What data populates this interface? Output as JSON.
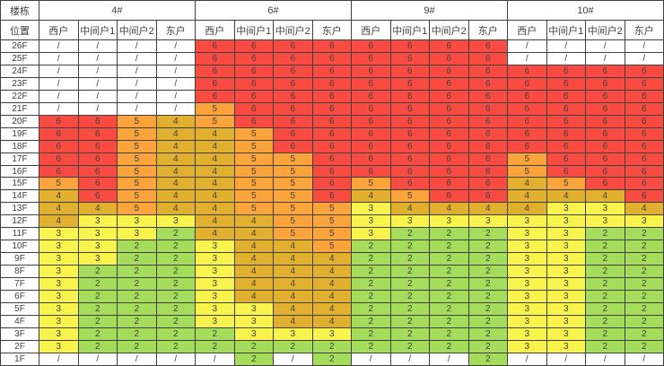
{
  "table": {
    "corner_row1": "楼栋",
    "corner_row2": "位置"
  },
  "chart_data": {
    "type": "heatmap",
    "title": "",
    "row_axis_label_row1": "楼栋",
    "row_axis_label_row2": "位置",
    "row_labels": [
      "26F",
      "25F",
      "24F",
      "23F",
      "22F",
      "21F",
      "20F",
      "19F",
      "18F",
      "17F",
      "16F",
      "15F",
      "14F",
      "13F",
      "12F",
      "11F",
      "10F",
      "9F",
      "8F",
      "7F",
      "6F",
      "5F",
      "4F",
      "3F",
      "2F",
      "1F"
    ],
    "column_groups": [
      "4#",
      "6#",
      "9#",
      "10#"
    ],
    "sub_columns": [
      "西户",
      "中间户1",
      "中间户2",
      "东户"
    ],
    "empty_marker": "/",
    "legend": "none",
    "grid": true,
    "values": {
      "4#": [
        [
          "/",
          "/",
          "/",
          "/"
        ],
        [
          "/",
          "/",
          "/",
          "/"
        ],
        [
          "/",
          "/",
          "/",
          "/"
        ],
        [
          "/",
          "/",
          "/",
          "/"
        ],
        [
          "/",
          "/",
          "/",
          "/"
        ],
        [
          "/",
          "/",
          "/",
          "/"
        ],
        [
          "6",
          "6",
          "5",
          "4"
        ],
        [
          "6",
          "6",
          "5",
          "4"
        ],
        [
          "6",
          "6",
          "5",
          "4"
        ],
        [
          "6",
          "6",
          "5",
          "4"
        ],
        [
          "6",
          "6",
          "5",
          "4"
        ],
        [
          "5",
          "6",
          "5",
          "4"
        ],
        [
          "4",
          "6",
          "5",
          "4"
        ],
        [
          "4",
          "4",
          "5",
          "4"
        ],
        [
          "4",
          "3",
          "3",
          "3"
        ],
        [
          "3",
          "3",
          "3",
          "2"
        ],
        [
          "3",
          "3",
          "2",
          "2"
        ],
        [
          "3",
          "3",
          "2",
          "2"
        ],
        [
          "3",
          "2",
          "2",
          "2"
        ],
        [
          "3",
          "2",
          "2",
          "2"
        ],
        [
          "3",
          "2",
          "2",
          "2"
        ],
        [
          "3",
          "2",
          "2",
          "2"
        ],
        [
          "3",
          "2",
          "2",
          "2"
        ],
        [
          "3",
          "2",
          "2",
          "2"
        ],
        [
          "3",
          "2",
          "2",
          "2"
        ],
        [
          "/",
          "/",
          "/",
          "/"
        ]
      ],
      "6#": [
        [
          "6",
          "6",
          "6",
          "6"
        ],
        [
          "6",
          "6",
          "6",
          "6"
        ],
        [
          "6",
          "6",
          "6",
          "6"
        ],
        [
          "6",
          "6",
          "6",
          "6"
        ],
        [
          "6",
          "6",
          "6",
          "6"
        ],
        [
          "5",
          "6",
          "6",
          "6"
        ],
        [
          "5",
          "6",
          "6",
          "6"
        ],
        [
          "4",
          "5",
          "6",
          "6"
        ],
        [
          "4",
          "5",
          "6",
          "6"
        ],
        [
          "4",
          "5",
          "5",
          "6"
        ],
        [
          "4",
          "5",
          "5",
          "6"
        ],
        [
          "4",
          "5",
          "5",
          "6"
        ],
        [
          "4",
          "5",
          "5",
          "6"
        ],
        [
          "4",
          "5",
          "5",
          "5"
        ],
        [
          "4",
          "4",
          "5",
          "5"
        ],
        [
          "4",
          "4",
          "5",
          "5"
        ],
        [
          "3",
          "4",
          "4",
          "5"
        ],
        [
          "3",
          "4",
          "4",
          "4"
        ],
        [
          "3",
          "4",
          "4",
          "4"
        ],
        [
          "3",
          "4",
          "4",
          "4"
        ],
        [
          "3",
          "4",
          "4",
          "4"
        ],
        [
          "3",
          "3",
          "4",
          "4"
        ],
        [
          "3",
          "3",
          "4",
          "4"
        ],
        [
          "2",
          "3",
          "3",
          "3"
        ],
        [
          "2",
          "2",
          "2",
          "2"
        ],
        [
          "/",
          "2",
          "/",
          "2"
        ]
      ],
      "9#": [
        [
          "6",
          "6",
          "6",
          "6"
        ],
        [
          "6",
          "6",
          "6",
          "6"
        ],
        [
          "6",
          "6",
          "6",
          "6"
        ],
        [
          "6",
          "6",
          "6",
          "6"
        ],
        [
          "6",
          "6",
          "6",
          "6"
        ],
        [
          "6",
          "6",
          "6",
          "6"
        ],
        [
          "6",
          "6",
          "6",
          "6"
        ],
        [
          "6",
          "6",
          "6",
          "6"
        ],
        [
          "6",
          "6",
          "6",
          "6"
        ],
        [
          "6",
          "6",
          "6",
          "6"
        ],
        [
          "6",
          "6",
          "6",
          "6"
        ],
        [
          "5",
          "6",
          "6",
          "6"
        ],
        [
          "4",
          "5",
          "6",
          "6"
        ],
        [
          "3",
          "4",
          "4",
          "4"
        ],
        [
          "3",
          "3",
          "3",
          "3"
        ],
        [
          "3",
          "2",
          "2",
          "2"
        ],
        [
          "2",
          "2",
          "2",
          "2"
        ],
        [
          "2",
          "2",
          "2",
          "2"
        ],
        [
          "2",
          "2",
          "2",
          "2"
        ],
        [
          "2",
          "2",
          "2",
          "2"
        ],
        [
          "2",
          "2",
          "2",
          "2"
        ],
        [
          "2",
          "2",
          "2",
          "2"
        ],
        [
          "2",
          "2",
          "2",
          "2"
        ],
        [
          "2",
          "2",
          "2",
          "2"
        ],
        [
          "2",
          "2",
          "2",
          "2"
        ],
        [
          "/",
          "/",
          "/",
          "2"
        ]
      ],
      "10#": [
        [
          "/",
          "/",
          "/",
          "/"
        ],
        [
          "/",
          "/",
          "/",
          "/"
        ],
        [
          "6",
          "6",
          "6",
          "6"
        ],
        [
          "6",
          "6",
          "6",
          "6"
        ],
        [
          "6",
          "6",
          "6",
          "6"
        ],
        [
          "6",
          "6",
          "6",
          "6"
        ],
        [
          "6",
          "6",
          "6",
          "6"
        ],
        [
          "6",
          "6",
          "6",
          "6"
        ],
        [
          "6",
          "6",
          "6",
          "6"
        ],
        [
          "5",
          "6",
          "6",
          "6"
        ],
        [
          "5",
          "6",
          "6",
          "6"
        ],
        [
          "4",
          "5",
          "6",
          "6"
        ],
        [
          "4",
          "4",
          "4",
          "6"
        ],
        [
          "4",
          "3",
          "3",
          "4"
        ],
        [
          "3",
          "3",
          "3",
          "3"
        ],
        [
          "3",
          "3",
          "2",
          "2"
        ],
        [
          "3",
          "3",
          "2",
          "2"
        ],
        [
          "3",
          "3",
          "2",
          "2"
        ],
        [
          "3",
          "3",
          "2",
          "2"
        ],
        [
          "3",
          "3",
          "2",
          "2"
        ],
        [
          "3",
          "3",
          "2",
          "2"
        ],
        [
          "3",
          "3",
          "2",
          "2"
        ],
        [
          "3",
          "3",
          "2",
          "2"
        ],
        [
          "3",
          "3",
          "2",
          "2"
        ],
        [
          "3",
          "3",
          "2",
          "2"
        ],
        [
          "/",
          "/",
          "/",
          "/"
        ]
      ]
    },
    "value_colors": {
      "6": "#fa4b42",
      "5": "#fca43c",
      "4": "#e0b02e",
      "3": "#f8f34d",
      "2": "#a6dc5c",
      "/": "#ffffff"
    },
    "grid_line_color": "#404040",
    "text_color": "#404040"
  }
}
